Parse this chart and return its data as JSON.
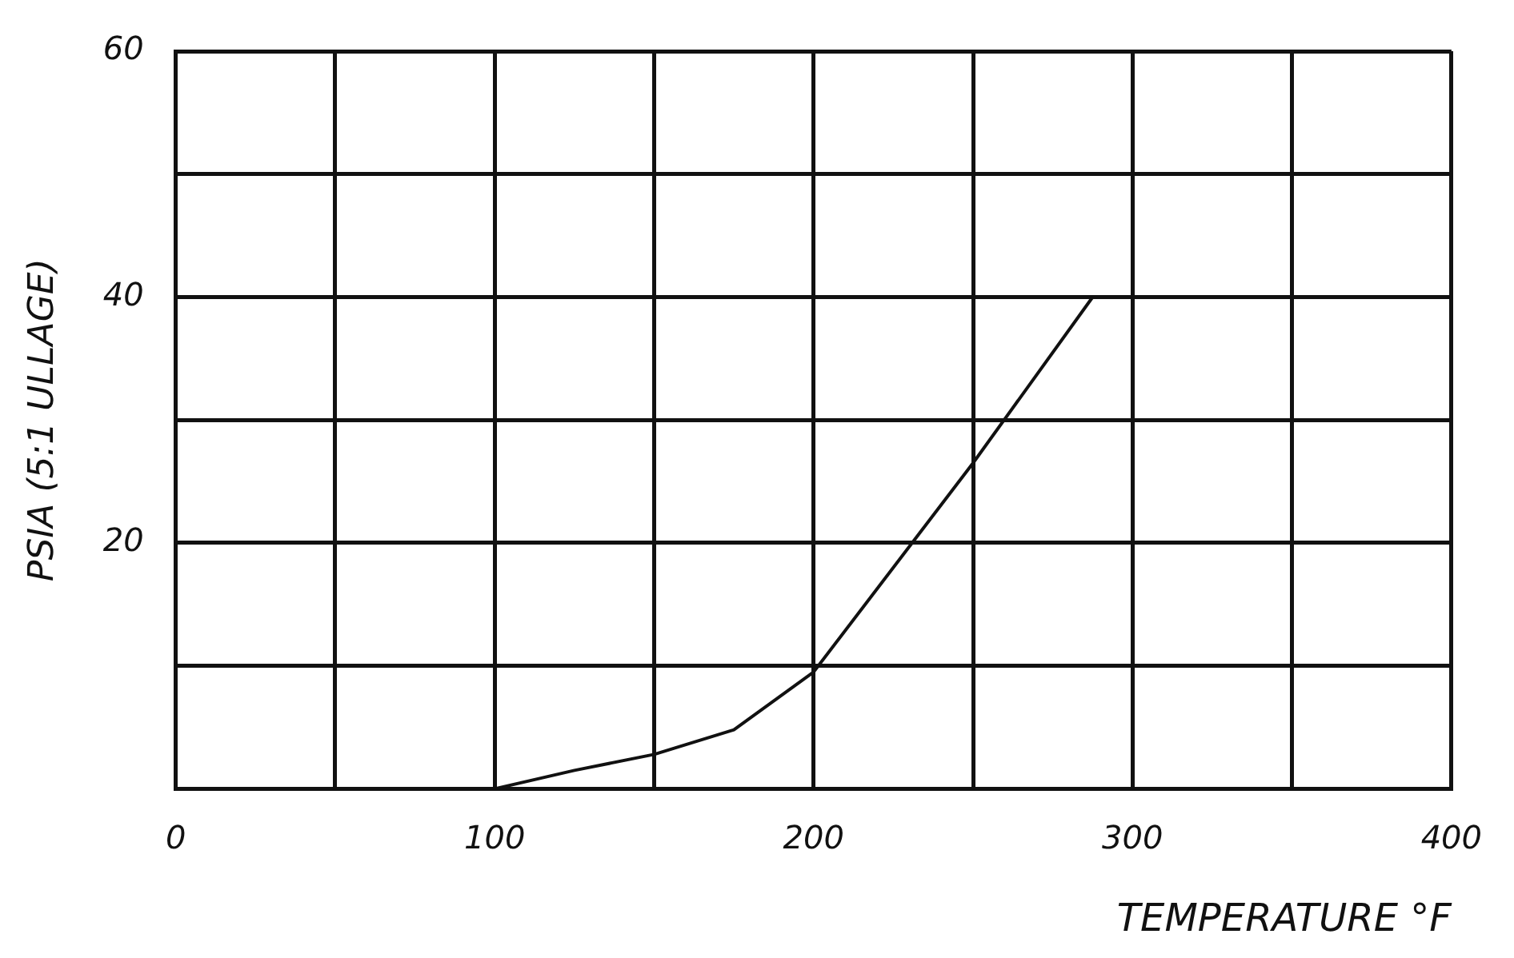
{
  "chart_data": {
    "type": "line",
    "xlabel": "TEMPERATURE °F",
    "ylabel": "PSIA (5:1 ULLAGE)",
    "x": [
      100,
      125,
      150,
      175,
      200,
      250,
      287.5
    ],
    "series": [
      {
        "color": "#111111",
        "values": [
          0,
          1.5,
          2.8,
          4.8,
          9.5,
          26.5,
          40
        ]
      }
    ],
    "xlim": [
      0,
      400
    ],
    "ylim": [
      0,
      60
    ],
    "xticks": [
      0,
      {
        "value": 50,
        "label": null
      },
      100,
      {
        "value": 150,
        "label": null
      },
      200,
      {
        "value": 250,
        "label": null
      },
      300,
      {
        "value": 350,
        "label": null
      },
      400
    ],
    "yticks": [
      {
        "value": 0,
        "label": null
      },
      {
        "value": 10,
        "label": null
      },
      20,
      {
        "value": 30,
        "label": null
      },
      40,
      {
        "value": 50,
        "label": null
      },
      60
    ],
    "grid": true,
    "marker": "none",
    "line_style": "solid"
  }
}
